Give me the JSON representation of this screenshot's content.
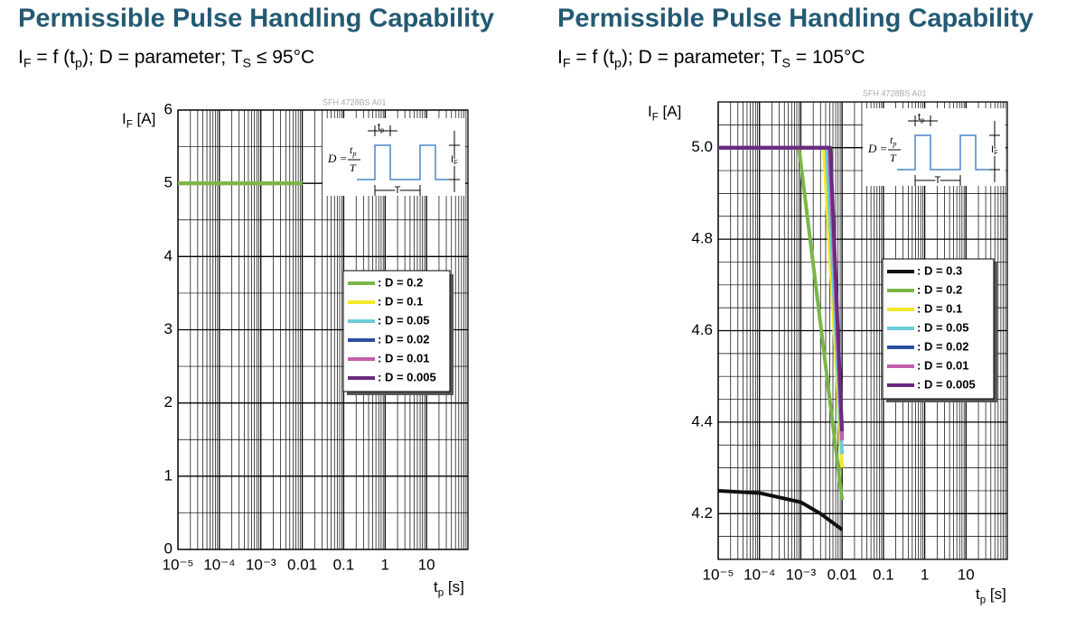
{
  "chart_data": [
    {
      "type": "line",
      "title": "Permissible Pulse Handling Capability",
      "subtitle": [
        "I",
        "F",
        " = f (t",
        "p",
        "); D = parameter; T",
        "S",
        " ≤ 95°C"
      ],
      "watermark": "SFH 4728BS A01",
      "y_label": [
        "I",
        "F",
        " [A]"
      ],
      "x_label": [
        "t",
        "p",
        " [s]"
      ],
      "x_scale": "log",
      "xlim": [
        1e-05,
        100
      ],
      "xticks": [
        {
          "value": 1e-05,
          "label": "10⁻⁵"
        },
        {
          "value": 0.0001,
          "label": "10⁻⁴"
        },
        {
          "value": 0.001,
          "label": "10⁻³"
        },
        0.01,
        0.1,
        1,
        10
      ],
      "ylim": [
        0,
        6
      ],
      "yticks": [
        0,
        1,
        2,
        3,
        4,
        5,
        6
      ],
      "grid": true,
      "legend": "right",
      "inset": {
        "formula": "D =",
        "numerator": [
          "t",
          "p"
        ],
        "denominator": "T",
        "pulse_width": [
          "t",
          "p"
        ],
        "period": "T",
        "amplitude": [
          "I",
          "F"
        ]
      },
      "series": [
        {
          "name": ": D = 0.2",
          "color": "#7ab648",
          "x": [
            1e-05,
            0.01
          ],
          "values": [
            5,
            5
          ]
        },
        {
          "name": ": D = 0.1",
          "color": "#f2e92a",
          "x": [
            1e-05,
            0.01
          ],
          "values": [
            5,
            5
          ]
        },
        {
          "name": ": D = 0.05",
          "color": "#6ccbd8",
          "x": [
            1e-05,
            0.01
          ],
          "values": [
            5,
            5
          ]
        },
        {
          "name": ": D = 0.02",
          "color": "#2b4f9e",
          "x": [
            1e-05,
            0.01
          ],
          "values": [
            5,
            5
          ]
        },
        {
          "name": ": D = 0.01",
          "color": "#c45fae",
          "x": [
            1e-05,
            0.01
          ],
          "values": [
            5,
            5
          ]
        },
        {
          "name": ": D = 0.005",
          "color": "#6a2a7e",
          "x": [
            1e-05,
            0.01
          ],
          "values": [
            5,
            5
          ]
        }
      ]
    },
    {
      "type": "line",
      "title": "Permissible Pulse Handling Capability",
      "subtitle": [
        "I",
        "F",
        " = f (t",
        "p",
        "); D = parameter; T",
        "S",
        " = 105°C"
      ],
      "watermark": "SFH 4728BS A01",
      "y_label": [
        "I",
        "F",
        " [A]"
      ],
      "x_label": [
        "t",
        "p",
        " [s]"
      ],
      "x_scale": "log",
      "xlim": [
        1e-05,
        100
      ],
      "xticks": [
        {
          "value": 1e-05,
          "label": "10⁻⁵"
        },
        {
          "value": 0.0001,
          "label": "10⁻⁴"
        },
        {
          "value": 0.001,
          "label": "10⁻³"
        },
        0.01,
        0.1,
        1,
        10
      ],
      "ylim": [
        4.1,
        5.1
      ],
      "yticks": [
        4.2,
        4.4,
        4.6,
        4.8,
        {
          "value": 5,
          "label": "5.0"
        }
      ],
      "grid": true,
      "legend": "right",
      "inset": {
        "formula": "D =",
        "numerator": [
          "t",
          "p"
        ],
        "denominator": "T",
        "pulse_width": [
          "t",
          "p"
        ],
        "period": "T",
        "amplitude": [
          "I",
          "F"
        ]
      },
      "series": [
        {
          "name": ": D = 0.3",
          "color": "#111111",
          "x": [
            1e-05,
            0.0001,
            0.001,
            0.003,
            0.01
          ],
          "values": [
            4.25,
            4.245,
            4.225,
            4.2,
            4.165
          ]
        },
        {
          "name": ": D = 0.2",
          "color": "#7ab648",
          "x": [
            1e-05,
            0.0009,
            0.01
          ],
          "values": [
            5,
            5,
            4.23
          ]
        },
        {
          "name": ": D = 0.1",
          "color": "#f2e92a",
          "x": [
            1e-05,
            0.0036,
            0.01
          ],
          "values": [
            5,
            5,
            4.3
          ]
        },
        {
          "name": ": D = 0.05",
          "color": "#6ccbd8",
          "x": [
            1e-05,
            0.0042,
            0.01
          ],
          "values": [
            5,
            5,
            4.33
          ]
        },
        {
          "name": ": D = 0.02",
          "color": "#2b4f9e",
          "x": [
            1e-05,
            0.0049,
            0.01
          ],
          "values": [
            5,
            5,
            4.37
          ]
        },
        {
          "name": ": D = 0.01",
          "color": "#c45fae",
          "x": [
            1e-05,
            0.0049,
            0.01
          ],
          "values": [
            5,
            5,
            4.36
          ]
        },
        {
          "name": ": D = 0.005",
          "color": "#6a2a7e",
          "x": [
            1e-05,
            0.0052,
            0.01
          ],
          "values": [
            5,
            5,
            4.38
          ]
        }
      ]
    }
  ]
}
